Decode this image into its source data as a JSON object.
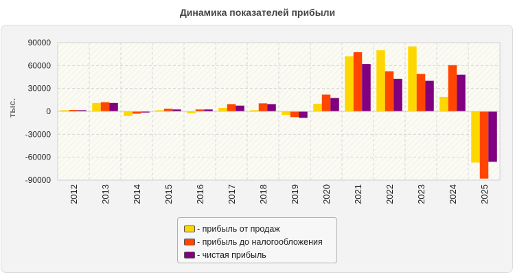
{
  "chart_data": {
    "type": "bar",
    "title": "Динамика показателей прибыли",
    "ylabel": "тыс.",
    "xlabel": "",
    "ylim": [
      -90000,
      90000
    ],
    "yticks": [
      90000,
      60000,
      30000,
      0,
      -30000,
      -60000,
      -90000
    ],
    "grid": true,
    "legend_position": "bottom",
    "categories": [
      "2012",
      "2013",
      "2014",
      "2015",
      "2016",
      "2017",
      "2018",
      "2019",
      "2020",
      "2021",
      "2022",
      "2023",
      "2024",
      "2025"
    ],
    "series": [
      {
        "name": "- прибыль от продаж",
        "color": "#FFD700",
        "values": [
          1500,
          11000,
          -6000,
          1500,
          -2500,
          4500,
          1500,
          -4500,
          10000,
          72000,
          80000,
          85000,
          19000,
          -67000
        ]
      },
      {
        "name": "- прибыль до налогообложения",
        "color": "#FF4500",
        "values": [
          1800,
          12000,
          -3000,
          3500,
          2500,
          9500,
          10500,
          -7500,
          22000,
          77500,
          52500,
          49000,
          60500,
          -88000
        ]
      },
      {
        "name": "- чистая прибыль",
        "color": "#800080",
        "values": [
          1500,
          11000,
          -1500,
          2500,
          2500,
          7500,
          9500,
          -8500,
          17500,
          62000,
          42500,
          40000,
          48000,
          -66000
        ]
      }
    ]
  }
}
